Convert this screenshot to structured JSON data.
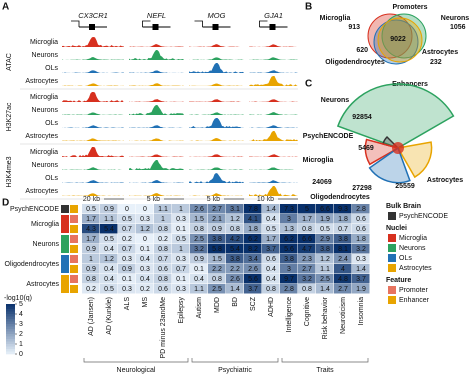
{
  "panel_labels": [
    "A",
    "B",
    "C",
    "D"
  ],
  "panel_a": {
    "genes": [
      "CX3CR1",
      "NEFL",
      "MOG",
      "GJA1"
    ],
    "assays": [
      {
        "name": "ATAC",
        "tracks": [
          "Microglia",
          "Neurons",
          "OLs",
          "Astrocytes"
        ]
      },
      {
        "name": "H3K27ac",
        "tracks": [
          "Microglia",
          "Neurons",
          "OLs",
          "Astrocytes"
        ]
      },
      {
        "name": "H3K4me3",
        "tracks": [
          "Microglia",
          "Neurons",
          "OLs",
          "Astrocytes"
        ]
      }
    ],
    "scales": [
      "20 kb",
      "5 kb",
      "5 kb",
      "10 kb"
    ]
  },
  "panel_b": {
    "title": "Promoters",
    "center": 9022,
    "sets": [
      {
        "name": "Microglia",
        "value": 913,
        "color": "#d7301f"
      },
      {
        "name": "Neurons",
        "value": 1056,
        "color": "#2ca25f"
      },
      {
        "name": "Oligodendrocytes",
        "value": 620,
        "color": "#2171b5"
      },
      {
        "name": "Astrocytes",
        "value": 232,
        "color": "#e8a400"
      }
    ]
  },
  "panel_c": {
    "title": "Enhancers",
    "sets": [
      {
        "name": "Neurons",
        "value": 92854,
        "color": "#2ca25f"
      },
      {
        "name": "PsychENCODE",
        "value": 5469,
        "color": "#333333"
      },
      {
        "name": "Microglia",
        "value": 24069,
        "color": "#d7301f"
      },
      {
        "name": "Astrocytes",
        "value": 25559,
        "color": "#e8a400"
      },
      {
        "name": "Oligodendrocytes",
        "value": 27298,
        "color": "#2171b5"
      }
    ]
  },
  "panel_d": {
    "categories": [
      {
        "name": "Neurological",
        "columns": [
          "AD (Jansen)",
          "AD (Kunkle)",
          "ALS",
          "MS",
          "PD minus 23andMe",
          "Epilepsy"
        ]
      },
      {
        "name": "Psychiatric",
        "columns": [
          "Autism",
          "MDD",
          "BD",
          "SCZ",
          "ADHD"
        ]
      },
      {
        "name": "Traits",
        "columns": [
          "Intelligence",
          "Cognitive",
          "Risk behavior",
          "Neuroticism",
          "Insomnia"
        ]
      }
    ],
    "groups": [
      {
        "label": "PsychENCODE",
        "color": "#333333",
        "rows": [
          {
            "feature_color": "#e8a400",
            "values": [
              0.5,
              0.9,
              0,
              0,
              1.1,
              1,
              2.6,
              2.7,
              3.1,
              7.8,
              1.4,
              7.3,
              5,
              6.6,
              9.3,
              2.8
            ]
          }
        ]
      },
      {
        "label": "Microglia",
        "color": "#d7301f",
        "rows": [
          {
            "feature_color": "#e7735f",
            "values": [
              1.7,
              1.1,
              0.5,
              0.3,
              1,
              0.3,
              1.5,
              2.1,
              1.2,
              4.1,
              0.4,
              3,
              1.7,
              1.9,
              1.8,
              0.6
            ]
          },
          {
            "feature_color": "#e8a400",
            "values": [
              4.3,
              5.4,
              0.7,
              1.2,
              0.8,
              0.1,
              0.8,
              0.9,
              0.8,
              1.8,
              0.5,
              1.3,
              0.8,
              0.5,
              0.7,
              0.6
            ]
          }
        ]
      },
      {
        "label": "Neurons",
        "color": "#2ca25f",
        "rows": [
          {
            "feature_color": "#e7735f",
            "values": [
              1.7,
              0.5,
              0.2,
              0,
              0.2,
              0.5,
              2.5,
              3.8,
              4.2,
              6.2,
              1.7,
              6.2,
              6.6,
              2.9,
              3.8,
              1.8
            ]
          },
          {
            "feature_color": "#e8a400",
            "values": [
              0.9,
              0.4,
              0.7,
              0.1,
              0.8,
              1,
              3.2,
              5.8,
              5.4,
              8.2,
              3.7,
              5.6,
              4.7,
              3.8,
              8.1,
              3.2
            ]
          }
        ]
      },
      {
        "label": "Oligodendrocytes",
        "color": "#2171b5",
        "rows": [
          {
            "feature_color": "#e7735f",
            "values": [
              1,
              1.2,
              0.3,
              0.4,
              0.7,
              0.3,
              0.9,
              1.5,
              3.8,
              3.4,
              0.6,
              3.8,
              2.3,
              1.2,
              2.4,
              0.3
            ]
          },
          {
            "feature_color": "#e8a400",
            "values": [
              0.9,
              0.4,
              0.9,
              0.3,
              0.6,
              0.7,
              0.1,
              2.2,
              2.2,
              2.6,
              0.4,
              3,
              2.7,
              1.1,
              4,
              1.4
            ]
          }
        ]
      },
      {
        "label": "Astrocytes",
        "color": "#e8a400",
        "rows": [
          {
            "feature_color": "#e7735f",
            "values": [
              0.8,
              0.4,
              0.1,
              0.4,
              0.8,
              0.1,
              0.4,
              0.8,
              2.6,
              5.6,
              0.4,
              9.7,
              3.2,
              2.5,
              4.8,
              3.7
            ]
          },
          {
            "feature_color": "#e8a400",
            "values": [
              0.2,
              0.5,
              0.3,
              0.2,
              0.6,
              0.3,
              1.1,
              2.5,
              1.4,
              3.7,
              0.8,
              2.8,
              0.8,
              1.4,
              2.7,
              1.9
            ]
          }
        ]
      }
    ],
    "colorbar": {
      "title": "-log10(q)",
      "ticks": [
        0,
        1,
        2,
        3,
        4,
        5
      ]
    },
    "legend": [
      {
        "title": "Bulk Brain",
        "items": [
          {
            "name": "PsychENCODE",
            "color": "#333333"
          }
        ]
      },
      {
        "title": "Nuclei",
        "items": [
          {
            "name": "Microglia",
            "color": "#d7301f"
          },
          {
            "name": "Neurons",
            "color": "#2ca25f"
          },
          {
            "name": "OLs",
            "color": "#2171b5"
          },
          {
            "name": "Astrocytes",
            "color": "#e8a400"
          }
        ]
      },
      {
        "title": "Feature",
        "items": [
          {
            "name": "Promoter",
            "color": "#e7735f"
          },
          {
            "name": "Enhancer",
            "color": "#e8a400"
          }
        ]
      }
    ]
  }
}
